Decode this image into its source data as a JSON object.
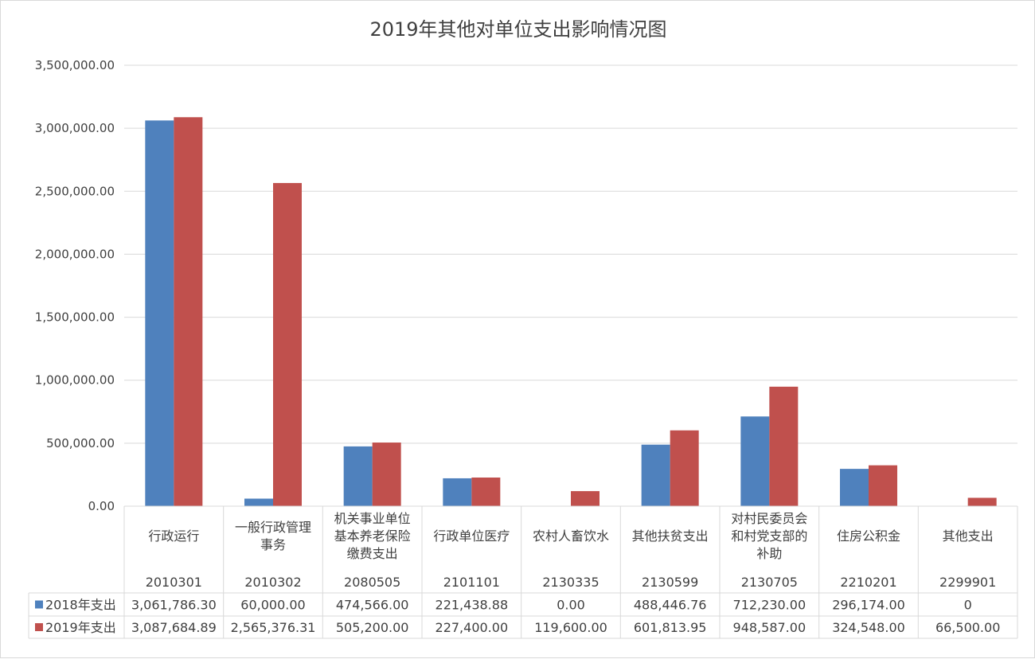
{
  "chart_data": {
    "type": "bar",
    "title": "2019年其他对单位支出影响情况图",
    "categories": [
      {
        "name_lines": [
          "行政运行"
        ],
        "code": "2010301"
      },
      {
        "name_lines": [
          "一般行政管理",
          "事务"
        ],
        "code": "2010302"
      },
      {
        "name_lines": [
          "机关事业单位",
          "基本养老保险",
          "缴费支出"
        ],
        "code": "2080505"
      },
      {
        "name_lines": [
          "行政单位医疗"
        ],
        "code": "2101101"
      },
      {
        "name_lines": [
          "农村人畜饮水"
        ],
        "code": "2130335"
      },
      {
        "name_lines": [
          "其他扶贫支出"
        ],
        "code": "2130599"
      },
      {
        "name_lines": [
          "对村民委员会",
          "和村党支部的",
          "补助"
        ],
        "code": "2130705"
      },
      {
        "name_lines": [
          "住房公积金"
        ],
        "code": "2210201"
      },
      {
        "name_lines": [
          "其他支出"
        ],
        "code": "2299901"
      }
    ],
    "series": [
      {
        "name": "2018年支出",
        "color": "#4f81bd",
        "values": [
          3061786.3,
          60000.0,
          474566.0,
          221438.88,
          0.0,
          488446.76,
          712230.0,
          296174.0,
          0
        ],
        "labels": [
          "3,061,786.30",
          "60,000.00",
          "474,566.00",
          "221,438.88",
          "0.00",
          "488,446.76",
          "712,230.00",
          "296,174.00",
          "0"
        ]
      },
      {
        "name": "2019年支出",
        "color": "#c0504d",
        "values": [
          3087684.89,
          2565376.31,
          505200.0,
          227400.0,
          119600.0,
          601813.95,
          948587.0,
          324548.0,
          66500.0
        ],
        "labels": [
          "3,087,684.89",
          "2,565,376.31",
          "505,200.00",
          "227,400.00",
          "119,600.00",
          "601,813.95",
          "948,587.00",
          "324,548.00",
          "66,500.00"
        ]
      }
    ],
    "y_ticks": [
      "0.00",
      "500,000.00",
      "1,000,000.00",
      "1,500,000.00",
      "2,000,000.00",
      "2,500,000.00",
      "3,000,000.00",
      "3,500,000.00"
    ],
    "ylim": [
      0,
      3500000
    ],
    "grid": true,
    "legend": "data-table"
  }
}
